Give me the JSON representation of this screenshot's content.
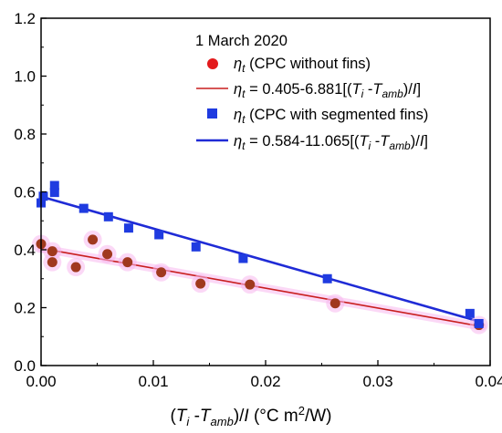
{
  "chart_data": {
    "type": "scatter",
    "title": "",
    "xlabel": "",
    "ylabel": "",
    "xlim": [
      0,
      0.04
    ],
    "ylim": [
      0,
      1.2
    ],
    "x_ticks": [
      "0.00",
      "0.01",
      "0.02",
      "0.03",
      "0.04"
    ],
    "y_ticks": [
      "0.0",
      "0.2",
      "0.4",
      "0.6",
      "0.8",
      "1.0",
      "1.2"
    ],
    "x_tick_values": [
      0,
      0.01,
      0.02,
      0.03,
      0.04
    ],
    "y_tick_values": [
      0,
      0.2,
      0.4,
      0.6,
      0.8,
      1.0,
      1.2
    ],
    "grid": false,
    "legend_placement": "top-right",
    "legend_heading": "1 March 2020",
    "axis_title_parts": {
      "open": "(",
      "Ti_main": "T",
      "Ti_sub": "i",
      "minus": " -",
      "Tamb_main": "T",
      "Tamb_sub": "amb",
      "close": ")/",
      "I": "I",
      "unit_pre": " (°C m",
      "unit_sup": "2",
      "unit_post": "/W)"
    },
    "series": [
      {
        "name": "ηt (CPC without fins)",
        "label_symbol": "η",
        "label_sub": "t",
        "label_text": " (CPC without fins)",
        "marker": "circle",
        "color": "#e31a1c",
        "x": [
          0.0,
          0.001,
          0.001,
          0.0031,
          0.0046,
          0.0059,
          0.0077,
          0.0107,
          0.0142,
          0.0186,
          0.0262,
          0.039
        ],
        "y": [
          0.42,
          0.395,
          0.357,
          0.34,
          0.435,
          0.385,
          0.357,
          0.322,
          0.283,
          0.28,
          0.215,
          0.14
        ]
      },
      {
        "name": "ηt (CPC with segmented fins)",
        "label_symbol": "η",
        "label_sub": "t",
        "label_text": " (CPC with segmented fins)",
        "marker": "square",
        "color": "#1f3be0",
        "x": [
          0.0,
          0.0002,
          0.0012,
          0.0012,
          0.0038,
          0.006,
          0.0078,
          0.0105,
          0.0138,
          0.018,
          0.0255,
          0.0382,
          0.039
        ],
        "y": [
          0.562,
          0.585,
          0.598,
          0.622,
          0.543,
          0.514,
          0.475,
          0.452,
          0.41,
          0.37,
          0.3,
          0.18,
          0.145
        ]
      }
    ],
    "fits": [
      {
        "name": "ηt = 0.405-6.881[(Ti -Tamb)/I]",
        "label_symbol": "η",
        "label_sub": "t",
        "label_pre": " = 0.405-6.881[(",
        "label_T1": "T",
        "label_T1_sub": "i",
        "label_mid": " -",
        "label_T2": "T",
        "label_T2_sub": "amb",
        "label_close": ")/",
        "label_I": "I",
        "label_end": "]",
        "intercept": 0.405,
        "slope": -6.881,
        "color": "#c81e1e",
        "band_color": "#f7b8ee"
      },
      {
        "name": "ηt = 0.584-11.065[(Ti -Tamb)/I]",
        "label_symbol": "η",
        "label_sub": "t",
        "label_pre": " = 0.584-11.065[(",
        "label_T1": "T",
        "label_T1_sub": "i",
        "label_mid": " -",
        "label_T2": "T",
        "label_T2_sub": "amb",
        "label_close": ")/",
        "label_I": "I",
        "label_end": "]",
        "intercept": 0.584,
        "slope": -11.065,
        "color": "#1f2bd6"
      }
    ]
  }
}
